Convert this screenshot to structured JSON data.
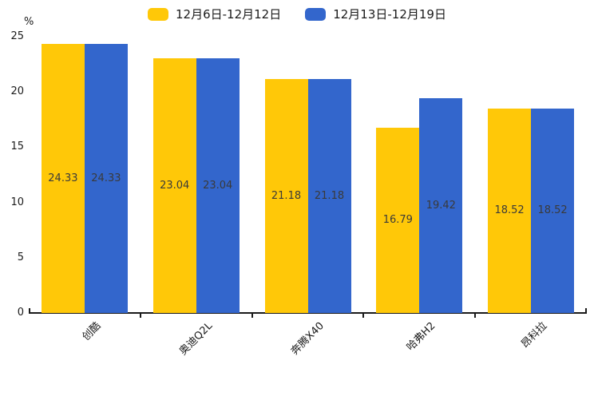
{
  "chart_data": {
    "type": "bar",
    "title": "",
    "categories": [
      "创酷",
      "奥迪Q2L",
      "奔腾X40",
      "哈弗H2",
      "昂科拉"
    ],
    "series": [
      {
        "name": "12月6日-12月12日",
        "color": "#FFC808",
        "values": [
          24.33,
          23.04,
          21.18,
          16.79,
          18.52
        ]
      },
      {
        "name": "12月13日-12月19日",
        "color": "#3366CC",
        "values": [
          24.33,
          23.04,
          21.18,
          19.42,
          18.52
        ]
      }
    ],
    "y_axis": {
      "unit": "%",
      "min": 0,
      "max": 25,
      "ticks": [
        0,
        5,
        10,
        15,
        20,
        25
      ]
    },
    "legend_position": "top-center",
    "grid": false,
    "value_labels": "inside-middle",
    "axis_color": "#1a1a1a",
    "value_label_color": "#3a3a3a"
  }
}
